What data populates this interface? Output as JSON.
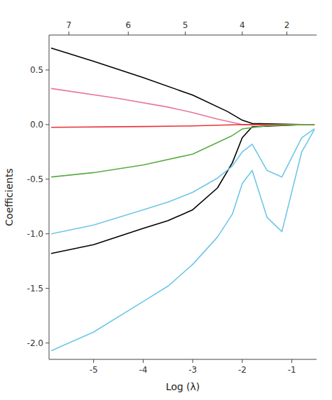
{
  "chart_data": {
    "type": "line",
    "x_label": "Log (λ)",
    "y_label": "Coefficients",
    "xlim": [
      -5.9,
      -0.5
    ],
    "ylim": [
      -2.15,
      0.82
    ],
    "xticks": [
      -5,
      -4,
      -3,
      -2,
      -1
    ],
    "yticks": [
      {
        "value": -2.0,
        "label": "-2.0"
      },
      {
        "value": -1.5,
        "label": "-1.5"
      },
      {
        "value": -1.0,
        "label": "-1.0"
      },
      {
        "value": -0.5,
        "label": "-0.5"
      },
      {
        "value": 0.0,
        "label": "0.0"
      },
      0.5
    ],
    "x2ticks": [
      {
        "value": -5.5,
        "label": "7"
      },
      {
        "value": -4.3,
        "label": "6"
      },
      {
        "value": -3.15,
        "label": "5"
      },
      {
        "value": -2.0,
        "label": "4"
      },
      {
        "value": -1.1,
        "label": "2"
      }
    ],
    "grid": false,
    "series": [
      {
        "color": "#000000",
        "x": [
          -5.85,
          -5.0,
          -4.0,
          -3.0,
          -2.3,
          -2.0,
          -1.8,
          -0.8,
          -0.55
        ],
        "values": [
          0.7,
          0.58,
          0.43,
          0.27,
          0.12,
          0.04,
          0.01,
          0.0,
          0.0
        ]
      },
      {
        "color": "#000000",
        "x": [
          -5.85,
          -5.0,
          -4.0,
          -3.5,
          -3.0,
          -2.5,
          -2.2,
          -2.0,
          -1.8,
          -0.8,
          -0.55
        ],
        "values": [
          -1.18,
          -1.1,
          -0.95,
          -0.88,
          -0.78,
          -0.58,
          -0.35,
          -0.12,
          -0.02,
          0.0,
          0.0
        ]
      },
      {
        "color": "#e8759a",
        "x": [
          -5.85,
          -4.5,
          -3.5,
          -3.0,
          -2.5,
          -2.1,
          -2.0,
          -0.55
        ],
        "values": [
          0.33,
          0.24,
          0.16,
          0.11,
          0.05,
          0.01,
          0.0,
          0.0
        ]
      },
      {
        "color": "#e8343a",
        "x": [
          -5.85,
          -4.0,
          -3.0,
          -2.5,
          -2.1,
          -2.0,
          -0.55
        ],
        "values": [
          -0.025,
          -0.018,
          -0.012,
          -0.006,
          -0.001,
          0.0,
          0.0
        ]
      },
      {
        "color": "#5aac44",
        "x": [
          -5.85,
          -5.0,
          -4.0,
          -3.0,
          -2.2,
          -2.0,
          -1.5,
          -0.8,
          -0.55
        ],
        "values": [
          -0.48,
          -0.44,
          -0.37,
          -0.27,
          -0.1,
          -0.04,
          -0.01,
          0.0,
          0.0
        ]
      },
      {
        "color": "#6ec6e8",
        "x": [
          -5.85,
          -5.0,
          -4.0,
          -3.5,
          -3.0,
          -2.5,
          -2.2,
          -2.0,
          -1.8,
          -1.5,
          -1.2,
          -0.8,
          -0.55
        ],
        "values": [
          -1.0,
          -0.92,
          -0.78,
          -0.71,
          -0.62,
          -0.49,
          -0.38,
          -0.25,
          -0.18,
          -0.42,
          -0.48,
          -0.12,
          -0.04
        ]
      },
      {
        "color": "#6ec6e8",
        "x": [
          -5.85,
          -5.0,
          -4.0,
          -3.5,
          -3.0,
          -2.5,
          -2.2,
          -2.0,
          -1.8,
          -1.5,
          -1.2,
          -0.8,
          -0.55
        ],
        "values": [
          -2.07,
          -1.9,
          -1.62,
          -1.48,
          -1.28,
          -1.03,
          -0.82,
          -0.54,
          -0.42,
          -0.85,
          -0.98,
          -0.25,
          -0.05
        ]
      }
    ]
  }
}
